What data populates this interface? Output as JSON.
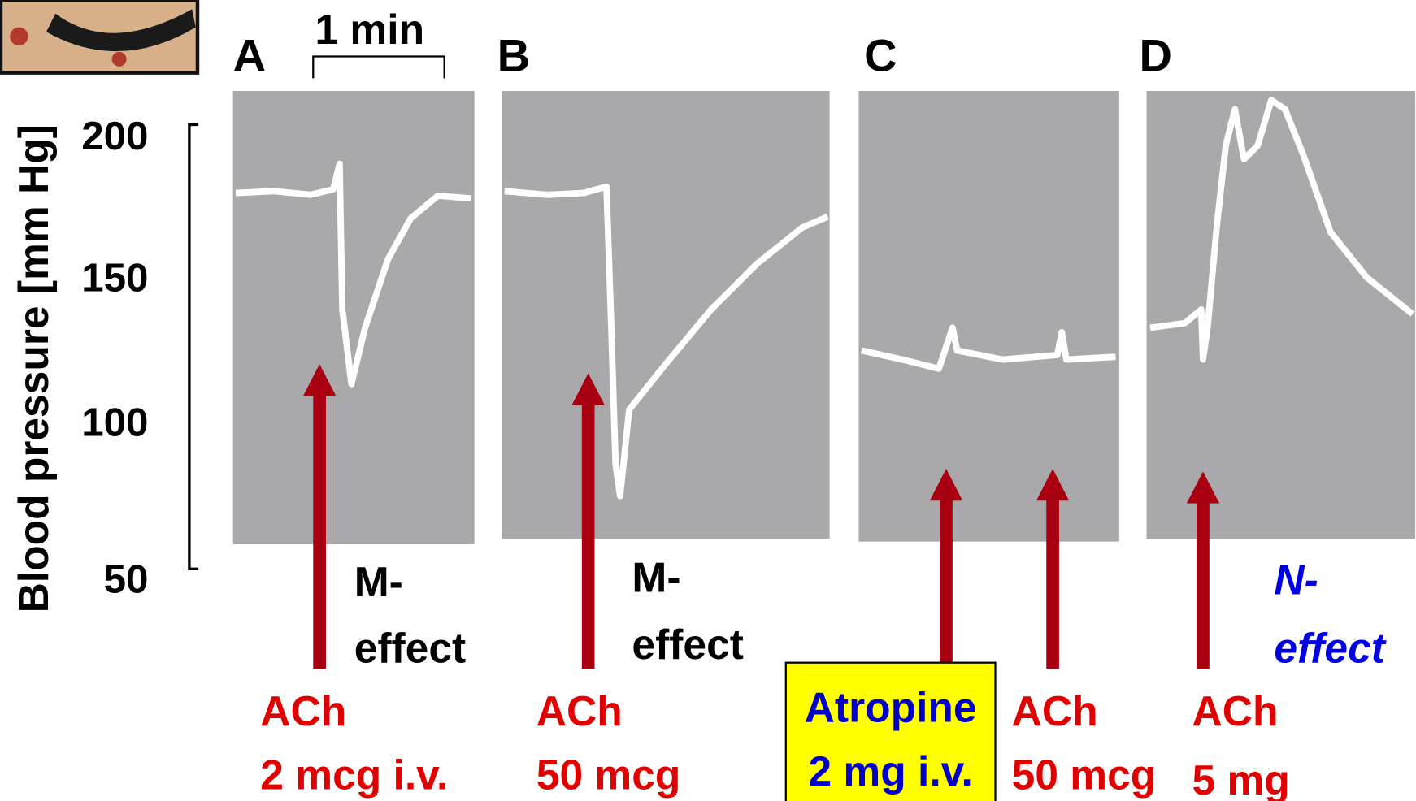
{
  "scale_bar": "1 min",
  "y_axis": {
    "label": "Blood pressure [mm Hg]",
    "ticks": [
      "200",
      "150",
      "100",
      "50"
    ]
  },
  "panels": [
    {
      "label": "A",
      "effect": [
        "M-",
        "effect"
      ],
      "doses": [
        {
          "drug": "ACh",
          "dose": "2 mcg i.v."
        }
      ]
    },
    {
      "label": "B",
      "effect": [
        "M-",
        "effect"
      ],
      "doses": [
        {
          "drug": "ACh",
          "dose": "50 mcg"
        }
      ]
    },
    {
      "label": "C",
      "doses": [
        {
          "drug": "Atropine",
          "dose": "2 mg i.v."
        },
        {
          "drug": "ACh",
          "dose": "50 mcg"
        }
      ]
    },
    {
      "label": "D",
      "effect": [
        "N-",
        "effect"
      ],
      "doses": [
        {
          "drug": "ACh",
          "dose": "5 mg"
        }
      ]
    }
  ]
}
